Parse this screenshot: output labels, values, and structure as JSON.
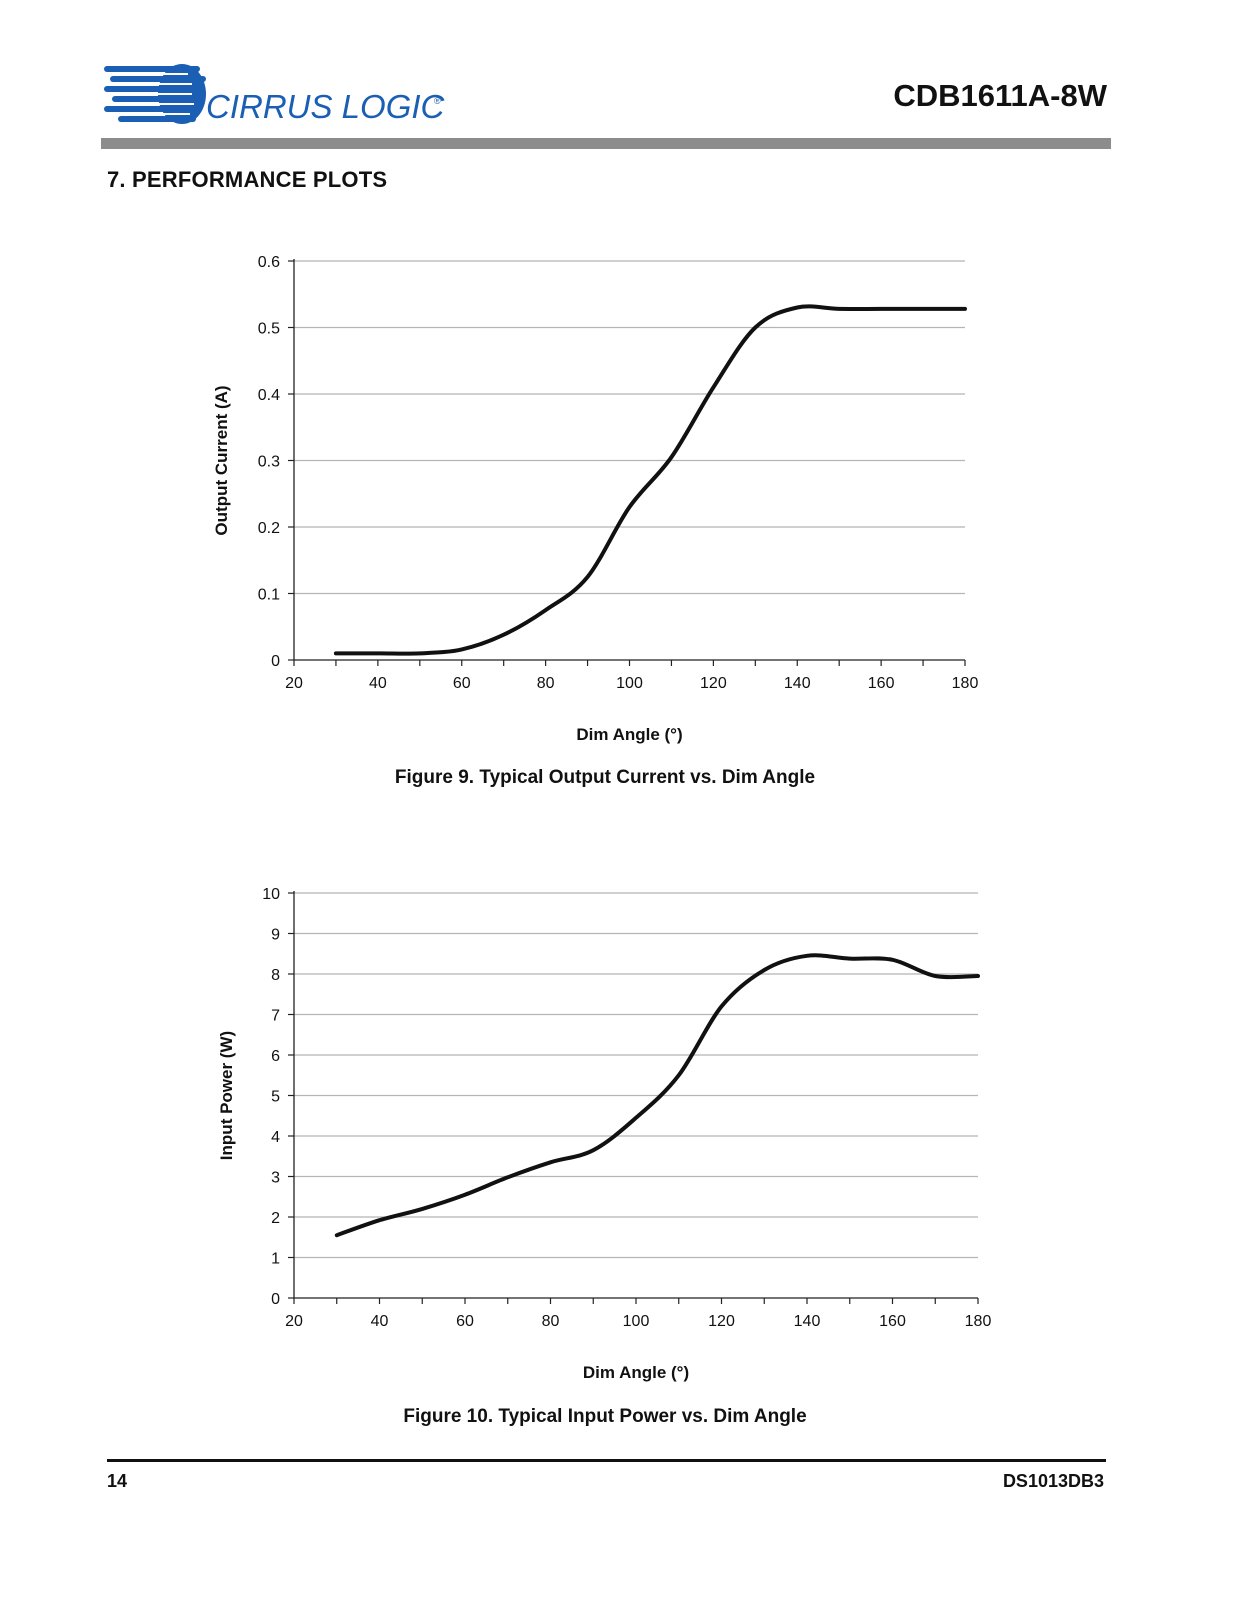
{
  "header": {
    "logo_text": "CIRRUS LOGIC",
    "logo_mark": "®",
    "doc_title": "CDB1611A-8W"
  },
  "section": {
    "title": "7.  PERFORMANCE PLOTS"
  },
  "colors": {
    "header_bar": "#8c8c8c",
    "logo_blue": "#1a5fb4",
    "curve": "#111111",
    "grid": "#b5b5b5"
  },
  "figures": [
    {
      "caption": "Figure 9.  Typical Output Current vs. Dim Angle"
    },
    {
      "caption": "Figure 10.  Typical Input Power vs. Dim Angle"
    }
  ],
  "chart_data": [
    {
      "type": "line",
      "title": "",
      "xlabel": "Dim Angle (°)",
      "ylabel": "Output Current (A)",
      "xlim": [
        20,
        180
      ],
      "ylim": [
        0,
        0.6
      ],
      "x_ticks": [
        20,
        40,
        60,
        80,
        100,
        120,
        140,
        160,
        180
      ],
      "y_ticks": [
        0,
        0.1,
        0.2,
        0.3,
        0.4,
        0.5,
        0.6
      ],
      "y_tick_labels": [
        "0",
        "0.1",
        "0.2",
        "0.3",
        "0.4",
        "0.5",
        "0.6"
      ],
      "grid": true,
      "legend": "none",
      "series": [
        {
          "x": [
            30,
            40,
            50,
            60,
            70,
            80,
            90,
            100,
            110,
            120,
            130,
            140,
            150,
            160,
            170,
            180
          ],
          "values": [
            0.01,
            0.01,
            0.01,
            0.016,
            0.038,
            0.075,
            0.125,
            0.23,
            0.305,
            0.41,
            0.5,
            0.53,
            0.528,
            0.528,
            0.528,
            0.528
          ]
        }
      ]
    },
    {
      "type": "line",
      "title": "",
      "xlabel": "Dim Angle (°)",
      "ylabel": "Input Power (W)",
      "xlim": [
        20,
        180
      ],
      "ylim": [
        0,
        10
      ],
      "x_ticks": [
        20,
        40,
        60,
        80,
        100,
        120,
        140,
        160,
        180
      ],
      "y_ticks": [
        0,
        1,
        2,
        3,
        4,
        5,
        6,
        7,
        8,
        9,
        10
      ],
      "y_tick_labels": [
        "0",
        "1",
        "2",
        "3",
        "4",
        "5",
        "6",
        "7",
        "8",
        "9",
        "10"
      ],
      "grid": true,
      "legend": "none",
      "series": [
        {
          "x": [
            30,
            40,
            50,
            60,
            70,
            80,
            90,
            100,
            110,
            120,
            130,
            140,
            150,
            160,
            170,
            180
          ],
          "values": [
            1.55,
            1.92,
            2.2,
            2.55,
            2.98,
            3.35,
            3.65,
            4.45,
            5.5,
            7.2,
            8.1,
            8.45,
            8.38,
            8.35,
            7.95,
            7.95
          ]
        }
      ]
    }
  ],
  "footer": {
    "page_number": "14",
    "doc_id": "DS1013DB3"
  }
}
